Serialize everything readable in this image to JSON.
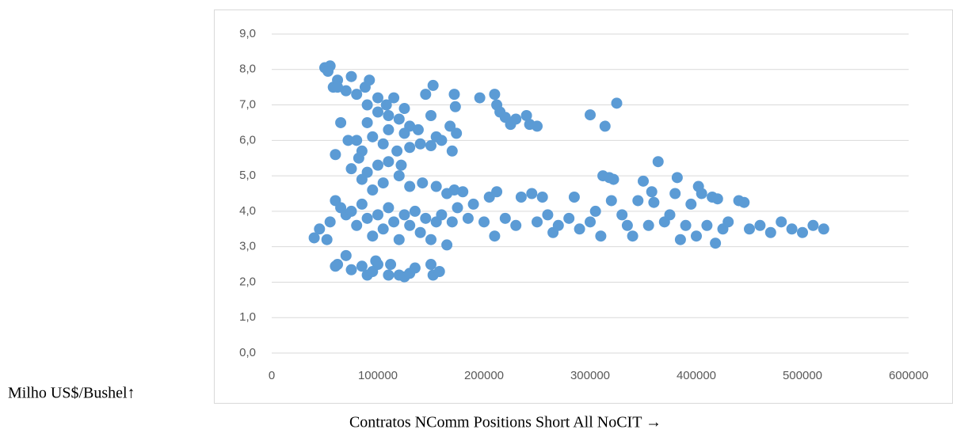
{
  "chart_data": {
    "type": "scatter",
    "x_label": "Contratos NComm Positions Short All NoCIT →",
    "y_label": "Milho US$/Bushel↑",
    "color": "#5b9bd5",
    "x": [
      50000,
      55000,
      53000,
      58000,
      62000,
      70000,
      75000,
      80000,
      88000,
      92000,
      100000,
      108000,
      115000,
      120000,
      125000,
      130000,
      138000,
      145000,
      152000,
      150000,
      160000,
      168000,
      172000,
      173000,
      174000,
      170000,
      196000,
      210000,
      212000,
      215000,
      220000,
      225000,
      230000,
      240000,
      243000,
      250000,
      300000,
      314000,
      325000,
      65000,
      60000,
      72000,
      80000,
      85000,
      90000,
      95000,
      105000,
      110000,
      118000,
      125000,
      130000,
      140000,
      150000,
      155000,
      62000,
      90000,
      100000,
      110000,
      75000,
      82000,
      90000,
      100000,
      110000,
      120000,
      122000,
      130000,
      142000,
      155000,
      165000,
      172000,
      180000,
      85000,
      95000,
      105000,
      60000,
      65000,
      70000,
      75000,
      80000,
      85000,
      90000,
      95000,
      100000,
      105000,
      110000,
      115000,
      120000,
      125000,
      130000,
      135000,
      140000,
      145000,
      150000,
      155000,
      160000,
      165000,
      170000,
      175000,
      185000,
      190000,
      200000,
      205000,
      210000,
      212000,
      220000,
      230000,
      235000,
      245000,
      250000,
      255000,
      260000,
      265000,
      270000,
      280000,
      285000,
      290000,
      300000,
      305000,
      310000,
      312000,
      318000,
      322000,
      320000,
      330000,
      335000,
      340000,
      345000,
      350000,
      355000,
      358000,
      360000,
      364000,
      370000,
      375000,
      380000,
      382000,
      385000,
      390000,
      395000,
      400000,
      402000,
      405000,
      410000,
      415000,
      418000,
      420000,
      425000,
      430000,
      440000,
      445000,
      450000,
      460000,
      470000,
      480000,
      490000,
      500000,
      510000,
      520000,
      40000,
      45000,
      52000,
      55000,
      62000,
      70000,
      75000,
      85000,
      90000,
      95000,
      100000,
      110000,
      112000,
      120000,
      125000,
      130000,
      135000,
      150000,
      152000,
      158000,
      98000,
      60000
    ],
    "values": [
      8.05,
      8.1,
      7.95,
      7.5,
      7.7,
      7.4,
      7.8,
      7.3,
      7.5,
      7.7,
      7.2,
      7.0,
      7.2,
      6.6,
      6.9,
      6.4,
      6.3,
      7.3,
      7.55,
      6.7,
      6.0,
      6.4,
      7.3,
      6.95,
      6.2,
      5.7,
      7.2,
      7.3,
      7.0,
      6.8,
      6.65,
      6.45,
      6.6,
      6.7,
      6.45,
      6.4,
      6.72,
      6.4,
      7.05,
      6.5,
      5.6,
      6.0,
      6.0,
      5.7,
      6.5,
      6.1,
      5.9,
      6.3,
      5.7,
      6.2,
      5.8,
      5.9,
      5.85,
      6.1,
      7.5,
      7.0,
      6.8,
      6.7,
      5.2,
      5.5,
      5.1,
      5.3,
      5.4,
      5.0,
      5.3,
      4.7,
      4.8,
      4.7,
      4.5,
      4.6,
      4.55,
      4.9,
      4.6,
      4.8,
      4.3,
      4.1,
      3.9,
      4.0,
      3.6,
      4.2,
      3.8,
      3.3,
      3.9,
      3.5,
      4.1,
      3.7,
      3.2,
      3.9,
      3.6,
      4.0,
      3.4,
      3.8,
      3.2,
      3.7,
      3.9,
      3.05,
      3.7,
      4.1,
      3.8,
      4.2,
      3.7,
      4.4,
      3.3,
      4.55,
      3.8,
      3.6,
      4.4,
      4.5,
      3.7,
      4.4,
      3.9,
      3.4,
      3.6,
      3.8,
      4.4,
      3.5,
      3.7,
      4.0,
      3.3,
      5.0,
      4.95,
      4.9,
      4.3,
      3.9,
      3.6,
      3.3,
      4.3,
      4.85,
      3.6,
      4.55,
      4.25,
      5.4,
      3.7,
      3.9,
      4.5,
      4.95,
      3.2,
      3.6,
      4.2,
      3.3,
      4.7,
      4.5,
      3.6,
      4.4,
      3.1,
      4.35,
      3.5,
      3.7,
      4.3,
      4.25,
      3.5,
      3.6,
      3.4,
      3.7,
      3.5,
      3.4,
      3.6,
      3.5,
      3.25,
      3.5,
      3.2,
      3.7,
      2.5,
      2.75,
      2.35,
      2.45,
      2.2,
      2.3,
      2.5,
      2.2,
      2.5,
      2.2,
      2.15,
      2.25,
      2.4,
      2.5,
      2.2,
      2.3,
      2.6,
      2.45
    ],
    "xlim": [
      0,
      600000
    ],
    "xticks": [
      0,
      100000,
      200000,
      300000,
      400000,
      500000,
      600000
    ],
    "ylim": [
      0,
      9
    ],
    "yticks": [
      {
        "value": 0,
        "label": "0,0"
      },
      {
        "value": 1,
        "label": "1,0"
      },
      {
        "value": 2,
        "label": "2,0"
      },
      {
        "value": 3,
        "label": "3,0"
      },
      {
        "value": 4,
        "label": "4,0"
      },
      {
        "value": 5,
        "label": "5,0"
      },
      {
        "value": 6,
        "label": "6,0"
      },
      {
        "value": 7,
        "label": "7,0"
      },
      {
        "value": 8,
        "label": "8,0"
      },
      {
        "value": 9,
        "label": "9,0"
      }
    ],
    "grid": true
  }
}
